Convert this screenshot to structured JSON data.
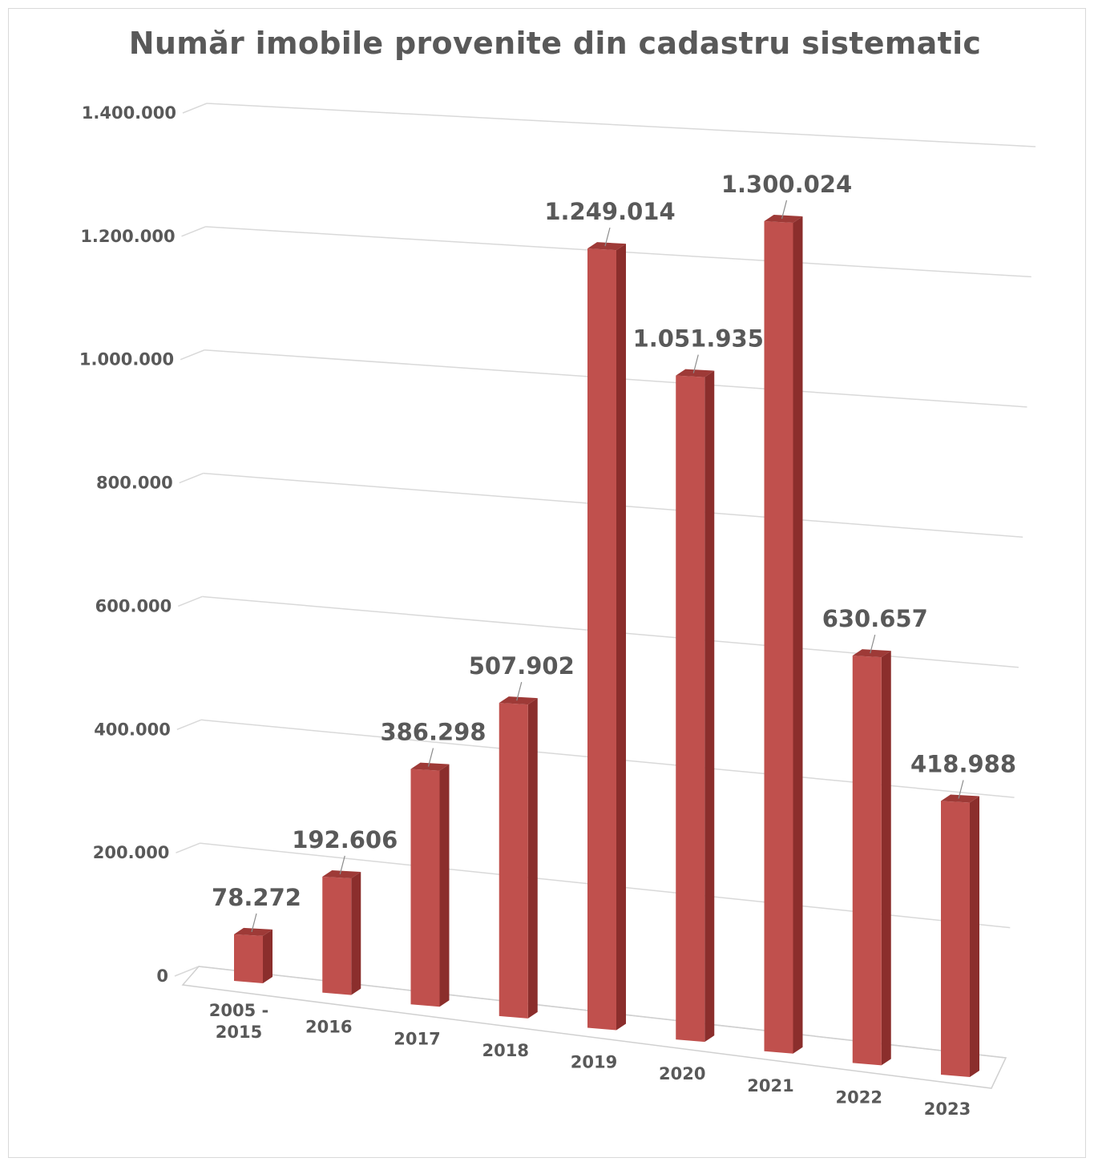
{
  "chart_data": {
    "type": "bar",
    "title": "Număr imobile provenite din cadastru sistematic",
    "categories": [
      [
        "2005 -",
        "2015"
      ],
      [
        "2016"
      ],
      [
        "2017"
      ],
      [
        "2018"
      ],
      [
        "2019"
      ],
      [
        "2020"
      ],
      [
        "2021"
      ],
      [
        "2022"
      ],
      [
        "2023"
      ]
    ],
    "values": [
      78272,
      192606,
      386298,
      507902,
      1249014,
      1051935,
      1300024,
      630657,
      418988
    ],
    "value_labels": [
      "78.272",
      "192.606",
      "386.298",
      "507.902",
      "1.249.014",
      "1.051.935",
      "1.300.024",
      "630.657",
      "418.988"
    ],
    "y_ticks": [
      0,
      200000,
      400000,
      600000,
      800000,
      1000000,
      1200000,
      1400000
    ],
    "y_tick_labels": [
      "0",
      "200.000",
      "400.000",
      "600.000",
      "800.000",
      "1.000.000",
      "1.200.000",
      "1.400.000"
    ],
    "ylim": [
      0,
      1400000
    ],
    "xlabel": "",
    "ylabel": "",
    "grid": true,
    "legend": "none",
    "style": "3d-column-perspective",
    "colors": {
      "front": "#c0504d",
      "side": "#8b2e2c",
      "top": "#9e3a37",
      "gridline": "#d9d9d9",
      "text": "#595959"
    }
  }
}
